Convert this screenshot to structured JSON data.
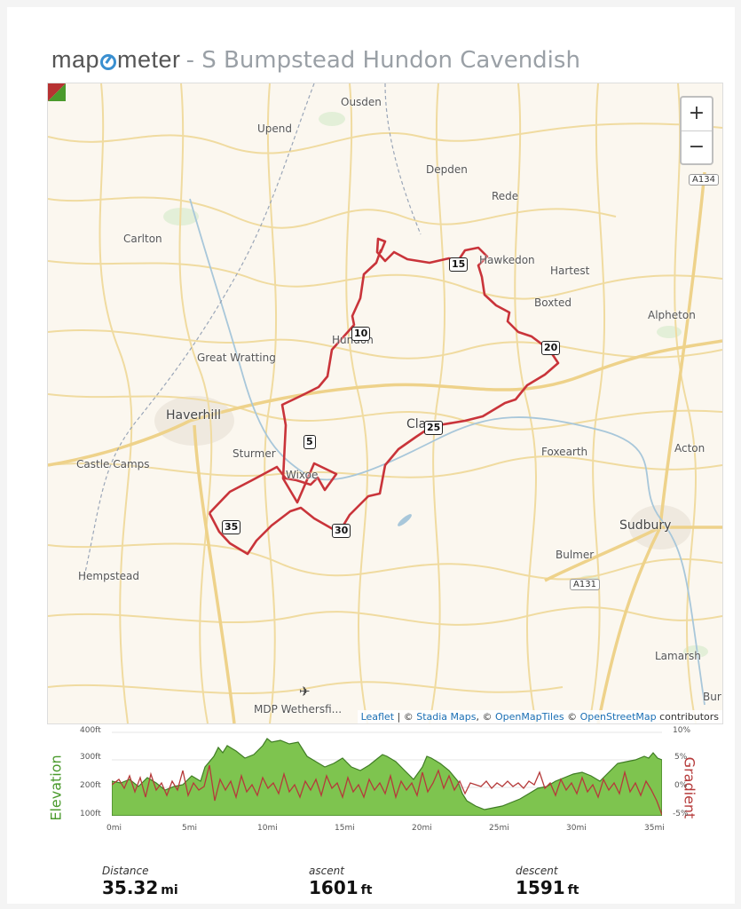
{
  "header": {
    "logo": "mapometer",
    "title": "- S Bumpstead Hundon Cavendish"
  },
  "map": {
    "zoom_in": "+",
    "zoom_out": "−",
    "places": [
      {
        "name": "Ousden"
      },
      {
        "name": "Upend"
      },
      {
        "name": "Depden"
      },
      {
        "name": "Rede"
      },
      {
        "name": "Carlton"
      },
      {
        "name": "Hawkedon"
      },
      {
        "name": "Hartest"
      },
      {
        "name": "Boxted"
      },
      {
        "name": "Alpheton"
      },
      {
        "name": "Hundon"
      },
      {
        "name": "Great Wratting"
      },
      {
        "name": "Haverhill"
      },
      {
        "name": "Clare"
      },
      {
        "name": "Sturmer"
      },
      {
        "name": "Foxearth"
      },
      {
        "name": "Acton"
      },
      {
        "name": "Castle Camps"
      },
      {
        "name": "Wixoe"
      },
      {
        "name": "Sudbury"
      },
      {
        "name": "Bulmer"
      },
      {
        "name": "Hempstead"
      },
      {
        "name": "Lamarsh"
      },
      {
        "name": "Bur"
      },
      {
        "name": "MDP Wethersfi..."
      }
    ],
    "road_shields": [
      "A134",
      "A131"
    ],
    "km_markers": [
      "5",
      "10",
      "15",
      "20",
      "25",
      "30",
      "35"
    ],
    "attribution": {
      "leaflet": "Leaflet",
      "sep1": " | © ",
      "stadia": "Stadia Maps",
      "sep2": ", © ",
      "omt": "OpenMapTiles",
      "sep3": " © ",
      "osm": "OpenStreetMap",
      "tail": " contributors"
    },
    "route_color": "#c9343a"
  },
  "elevation": {
    "left_label": "Elevation",
    "right_label": "Gradient",
    "y_ticks_left": [
      "400ft",
      "300ft",
      "200ft",
      "100ft"
    ],
    "y_ticks_right": [
      "10%",
      "5%",
      "0%",
      "-5%"
    ],
    "x_ticks": [
      "0mi",
      "5mi",
      "10mi",
      "15mi",
      "20mi",
      "25mi",
      "30mi",
      "35mi"
    ],
    "elev_color": "#7ec44f",
    "gradient_color": "#b53a3a"
  },
  "stats": {
    "distance_label": "Distance",
    "distance_value": "35.32",
    "distance_unit": "mi",
    "ascent_label": "ascent",
    "ascent_value": "1601",
    "ascent_unit": "ft",
    "descent_label": "descent",
    "descent_value": "1591",
    "descent_unit": "ft"
  }
}
